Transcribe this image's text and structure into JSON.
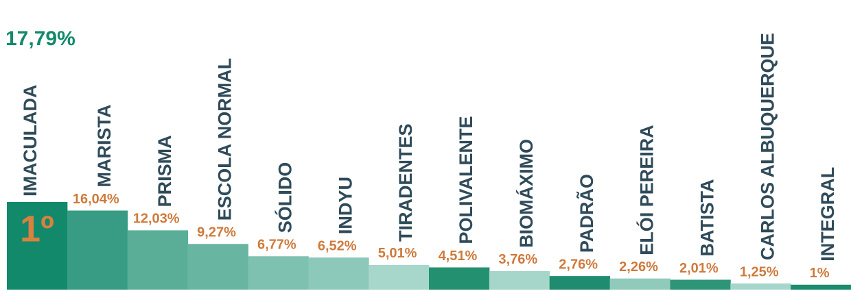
{
  "chart_data": {
    "type": "bar",
    "categories": [
      "IMACULADA",
      "MARISTA",
      "PRISMA",
      "ESCOLA NORMAL",
      "SÓLIDO",
      "INDYU",
      "TIRADENTES",
      "POLIVALENTE",
      "BIOMÁXIMO",
      "PADRÃO",
      "ELÓI PEREIRA",
      "BATISTA",
      "CARLOS ALBUQUERQUE",
      "INTEGRAL"
    ],
    "values": [
      17.79,
      16.04,
      12.03,
      9.27,
      6.77,
      6.52,
      5.01,
      4.51,
      3.76,
      2.76,
      2.26,
      2.01,
      1.25,
      1
    ],
    "value_labels": [
      "17,79%",
      "16,04%",
      "12,03%",
      "9,27%",
      "6,77%",
      "6,52%",
      "5,01%",
      "4,51%",
      "3,76%",
      "2,76%",
      "2,26%",
      "2,01%",
      "1,25%",
      "1%"
    ],
    "colors": [
      "#12896b",
      "#389c84",
      "#5aae98",
      "#68b6a2",
      "#7ec1b0",
      "#8dc9ba",
      "#a7d6cb",
      "#23906f",
      "#a6d5ca",
      "#1f8c6f",
      "#8fcabb",
      "#2f9579",
      "#a6d6cb",
      "#1c8b6e"
    ],
    "annotation": "1º",
    "ylim": [
      0,
      20
    ]
  }
}
